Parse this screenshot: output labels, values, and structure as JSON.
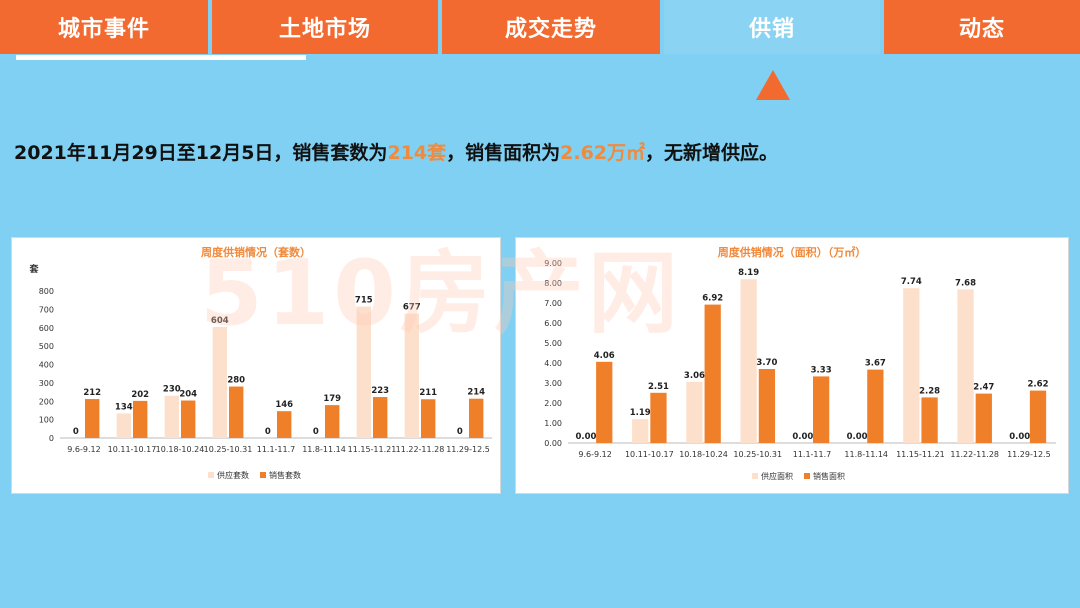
{
  "tabs": [
    {
      "label": "城市事件"
    },
    {
      "label": "土地市场"
    },
    {
      "label": "成交走势"
    },
    {
      "label": "供销"
    },
    {
      "label": "动态"
    }
  ],
  "headline": {
    "prefix": "2021年11月29日至12月5日，销售套数为",
    "units_value": "214套",
    "middle": "，销售面积为",
    "area_value": "2.62万㎡",
    "suffix": "，无新增供应。"
  },
  "watermark": "510房产网",
  "colors": {
    "supply": "#fde0cc",
    "sales": "#f07f2a",
    "tab": "#f26a2f",
    "background": "#7fd0f2"
  },
  "chart_data": [
    {
      "type": "bar",
      "title": "周度供销情况（套数）",
      "ylabel": "套",
      "ylim": [
        0,
        800
      ],
      "yticks": [
        "0",
        "100",
        "200",
        "300",
        "400",
        "500",
        "600",
        "700",
        "800"
      ],
      "categories": [
        "9.6-9.12",
        "10.11-10.17",
        "10.18-10.24",
        "10.25-10.31",
        "11.1-11.7",
        "11.8-11.14",
        "11.15-11.21",
        "11.22-11.28",
        "11.29-12.5"
      ],
      "series": [
        {
          "name": "供应套数",
          "values": [
            0,
            134,
            230,
            604,
            0,
            0,
            715,
            677,
            0
          ],
          "labels": [
            "0",
            "134",
            "230",
            "604",
            "0",
            "0",
            "715",
            "677",
            "0"
          ]
        },
        {
          "name": "销售套数",
          "values": [
            212,
            202,
            204,
            280,
            146,
            179,
            223,
            211,
            214
          ],
          "labels": [
            "212",
            "202",
            "204",
            "280",
            "146",
            "179",
            "223",
            "211",
            "214"
          ]
        }
      ],
      "legend": "bottom"
    },
    {
      "type": "bar",
      "title": "周度供销情况（面积）（万㎡）",
      "ylabel": "",
      "ylim": [
        0,
        9
      ],
      "yticks": [
        "0.00",
        "1.00",
        "2.00",
        "3.00",
        "4.00",
        "5.00",
        "6.00",
        "7.00",
        "8.00",
        "9.00"
      ],
      "categories": [
        "9.6-9.12",
        "10.11-10.17",
        "10.18-10.24",
        "10.25-10.31",
        "11.1-11.7",
        "11.8-11.14",
        "11.15-11.21",
        "11.22-11.28",
        "11.29-12.5"
      ],
      "series": [
        {
          "name": "供应面积",
          "values": [
            0,
            1.19,
            3.06,
            8.19,
            0,
            0,
            7.74,
            7.68,
            0
          ],
          "labels": [
            "0.00",
            "1.19",
            "3.06",
            "8.19",
            "0.00",
            "0.00",
            "7.74",
            "7.68",
            "0.00"
          ]
        },
        {
          "name": "销售面积",
          "values": [
            4.06,
            2.51,
            6.92,
            3.7,
            3.33,
            3.67,
            2.28,
            2.47,
            2.62
          ],
          "labels": [
            "4.06",
            "2.51",
            "6.92",
            "3.70",
            "3.33",
            "3.67",
            "2.28",
            "2.47",
            "2.62"
          ]
        }
      ],
      "legend": "bottom"
    }
  ]
}
